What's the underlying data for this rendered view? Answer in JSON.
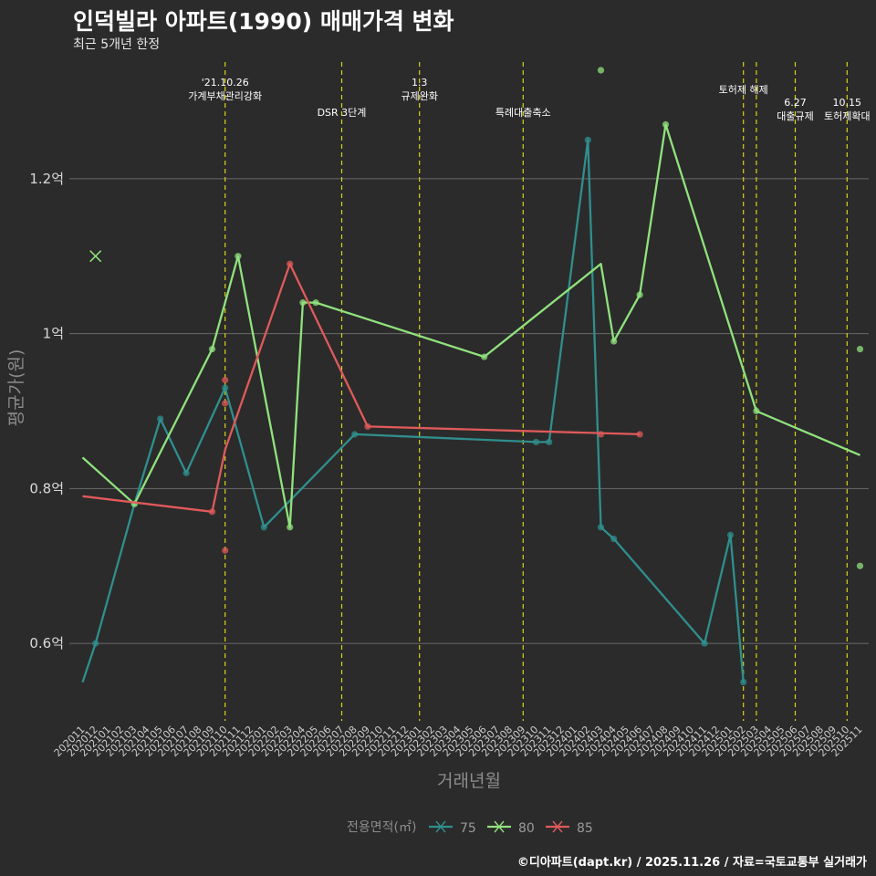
{
  "title": "인덕빌라 아파트(1990) 매매가격 변화",
  "subtitle": "최근 5개년 한정",
  "caption": "©디아파트(dapt.kr) / 2025.11.26 / 자료=국토교통부 실거래가",
  "chart_data": {
    "type": "line",
    "xlabel": "거래년월",
    "ylabel": "평균가(원)",
    "ylim": [
      0.5,
      1.36
    ],
    "yticks": [
      0.6,
      0.8,
      1.0,
      1.2
    ],
    "ytick_labels": [
      "0.6억",
      "0.8억",
      "1억",
      "1.2억"
    ],
    "x_start": "202011",
    "x_end": "202511",
    "categories": [
      "202011",
      "202012",
      "202101",
      "202102",
      "202103",
      "202104",
      "202105",
      "202106",
      "202107",
      "202108",
      "202109",
      "202110",
      "202111",
      "202112",
      "202201",
      "202202",
      "202203",
      "202204",
      "202205",
      "202206",
      "202207",
      "202208",
      "202209",
      "202210",
      "202211",
      "202212",
      "202301",
      "202302",
      "202303",
      "202304",
      "202305",
      "202306",
      "202307",
      "202308",
      "202309",
      "202310",
      "202311",
      "202312",
      "202401",
      "202402",
      "202403",
      "202404",
      "202405",
      "202406",
      "202407",
      "202408",
      "202409",
      "202410",
      "202411",
      "202412",
      "202501",
      "202502",
      "202503",
      "202504",
      "202505",
      "202506",
      "202507",
      "202508",
      "202509",
      "202510",
      "202511"
    ],
    "legend_title": "전용면적(㎡)",
    "series": [
      {
        "name": "75",
        "color": "#2f8f8d",
        "line": [
          [
            "202011",
            0.55
          ],
          [
            "202012",
            0.6
          ],
          [
            "202103",
            0.78
          ],
          [
            "202105",
            0.89
          ],
          [
            "202107",
            0.82
          ],
          [
            "202110",
            0.93
          ],
          [
            "202113",
            0.75
          ],
          [
            "202208",
            0.87
          ],
          [
            "202310",
            0.86
          ],
          [
            "202311",
            0.86
          ],
          [
            "202402",
            1.25
          ],
          [
            "202403",
            0.75
          ],
          [
            "202404",
            0.735
          ],
          [
            "202411",
            0.6
          ],
          [
            "202413",
            0.74
          ],
          [
            "202502",
            0.55
          ]
        ],
        "points": [
          [
            "202012",
            0.6
          ],
          [
            "202103",
            0.78
          ],
          [
            "202105",
            0.89
          ],
          [
            "202107",
            0.82
          ],
          [
            "202110",
            0.93
          ],
          [
            "202201",
            0.75
          ],
          [
            "202208",
            0.87
          ],
          [
            "202310",
            0.86
          ],
          [
            "202311",
            0.86
          ],
          [
            "202402",
            1.25
          ],
          [
            "202403",
            0.75
          ],
          [
            "202404",
            0.735
          ],
          [
            "202411",
            0.6
          ],
          [
            "202501",
            0.74
          ],
          [
            "202502",
            0.55
          ]
        ]
      },
      {
        "name": "80",
        "color": "#90e27d",
        "line": [
          [
            "202011",
            0.84
          ],
          [
            "202103",
            0.78
          ],
          [
            "202109",
            0.98
          ],
          [
            "202111",
            1.1
          ],
          [
            "202203",
            0.75
          ],
          [
            "202204",
            1.04
          ],
          [
            "202205",
            1.04
          ],
          [
            "202306",
            0.97
          ],
          [
            "202403",
            1.09
          ],
          [
            "202404",
            0.99
          ],
          [
            "202406",
            1.05
          ],
          [
            "202408",
            1.27
          ],
          [
            "202503",
            0.9
          ],
          [
            "202511",
            0.843
          ]
        ],
        "points": [
          [
            "202103",
            0.78
          ],
          [
            "202109",
            0.98
          ],
          [
            "202111",
            1.1
          ],
          [
            "202203",
            0.75
          ],
          [
            "202204",
            1.04
          ],
          [
            "202205",
            1.04
          ],
          [
            "202306",
            0.97
          ],
          [
            "202403",
            1.34
          ],
          [
            "202404",
            0.99
          ],
          [
            "202406",
            1.05
          ],
          [
            "202408",
            1.27
          ],
          [
            "202503",
            0.9
          ],
          [
            "202511",
            0.98
          ],
          [
            "202511",
            0.7
          ]
        ]
      },
      {
        "name": "85",
        "color": "#e05a5a",
        "line": [
          [
            "202011",
            0.79
          ],
          [
            "202109",
            0.77
          ],
          [
            "202110",
            0.85
          ],
          [
            "202203",
            1.09
          ],
          [
            "202209",
            0.88
          ],
          [
            "202406",
            0.87
          ]
        ],
        "points": [
          [
            "202109",
            0.77
          ],
          [
            "202110",
            0.94
          ],
          [
            "202110",
            0.91
          ],
          [
            "202110",
            0.72
          ],
          [
            "202203",
            1.09
          ],
          [
            "202209",
            0.88
          ],
          [
            "202403",
            0.87
          ],
          [
            "202406",
            0.87
          ]
        ]
      }
    ],
    "extra_points": [
      {
        "x": "202012",
        "y": 1.1,
        "marker": "x",
        "color": "#90e27d"
      }
    ],
    "events": [
      {
        "x": "202110",
        "lines": [
          "'21.10.26",
          "가계부채관리강화"
        ],
        "row": 0
      },
      {
        "x": "202207",
        "lines": [
          "DSR 3단계"
        ],
        "row": 1
      },
      {
        "x": "202301",
        "lines": [
          "1.3",
          "규제완화"
        ],
        "row": 0
      },
      {
        "x": "202309",
        "lines": [
          "특례대출축소"
        ],
        "row": 1
      },
      {
        "x": "202502",
        "lines": [
          "토허제 해제"
        ],
        "row": 0
      },
      {
        "x": "202503",
        "lines": [],
        "row": 0
      },
      {
        "x": "202506",
        "lines": [
          "6.27",
          "대출규제"
        ],
        "row": 0.5
      },
      {
        "x": "202510",
        "lines": [
          "10.15",
          "토허제확대"
        ],
        "row": 0.5
      }
    ]
  }
}
